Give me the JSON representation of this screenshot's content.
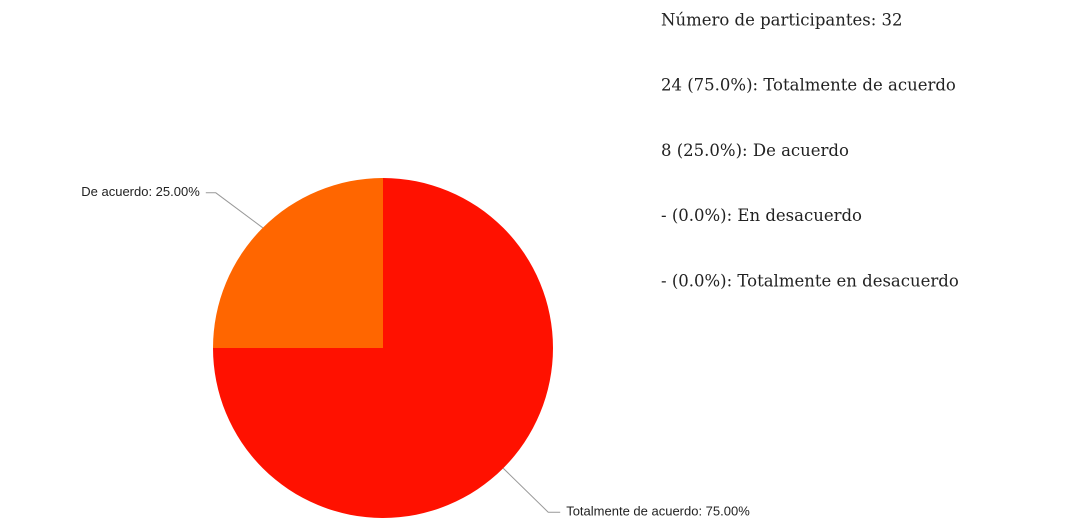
{
  "chart_data": {
    "type": "pie",
    "categories": [
      "Totalmente de acuerdo",
      "De acuerdo"
    ],
    "values": [
      75,
      25
    ],
    "value_labels": [
      "Totalmente de acuerdo: 75.00%",
      "De acuerdo: 25.00%"
    ],
    "colors": [
      "#ff1100",
      "#ff6600"
    ]
  },
  "summary": {
    "participants": "Número de participantes: 32",
    "items": [
      "24 (75.0%): Totalmente de acuerdo",
      "8 (25.0%): De acuerdo",
      "- (0.0%): En desacuerdo",
      "- (0.0%): Totalmente en desacuerdo"
    ]
  }
}
